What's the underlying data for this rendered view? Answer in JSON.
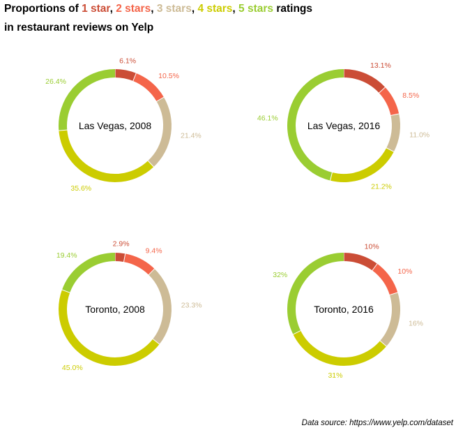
{
  "title": {
    "prefix": "Proportions of ",
    "parts": [
      {
        "text": "1 star",
        "color": "#CB4D36"
      },
      {
        "sep": ", "
      },
      {
        "text": "2 stars",
        "color": "#F4654A"
      },
      {
        "sep": ", "
      },
      {
        "text": "3 stars",
        "color": "#CDBB96"
      },
      {
        "sep": ", "
      },
      {
        "text": "4 stars",
        "color": "#CCCC00"
      },
      {
        "sep": ", "
      },
      {
        "text": "5 stars",
        "color": "#9ACD32"
      }
    ],
    "suffix": " ratings",
    "line2": "in restaurant reviews on Yelp"
  },
  "caption": "Data source: https://www.yelp.com/dataset",
  "chart_data": {
    "type": "pie",
    "categories": [
      "1 star",
      "2 stars",
      "3 stars",
      "4 stars",
      "5 stars"
    ],
    "colors": [
      "#CB4D36",
      "#F4654A",
      "#CDBB96",
      "#CCCC00",
      "#9ACD32"
    ],
    "charts": [
      {
        "label": "Las Vegas, 2008",
        "values": [
          6.1,
          10.5,
          21.4,
          35.6,
          26.4
        ],
        "value_labels": [
          "6.1%",
          "10.5%",
          "21.4%",
          "35.6%",
          "26.4%"
        ]
      },
      {
        "label": "Las Vegas, 2016",
        "values": [
          13.1,
          8.5,
          11.0,
          21.2,
          46.1
        ],
        "value_labels": [
          "13.1%",
          "8.5%",
          "11.0%",
          "21.2%",
          "46.1%"
        ]
      },
      {
        "label": "Toronto, 2008",
        "values": [
          2.9,
          9.4,
          23.3,
          45.0,
          19.4
        ],
        "value_labels": [
          "2.9%",
          "9.4%",
          "23.3%",
          "45.0%",
          "19.4%"
        ]
      },
      {
        "label": "Toronto, 2016",
        "values": [
          10,
          10,
          16,
          31,
          32
        ],
        "value_labels": [
          "10%",
          "10%",
          "16%",
          "31%",
          "32%"
        ]
      }
    ]
  }
}
